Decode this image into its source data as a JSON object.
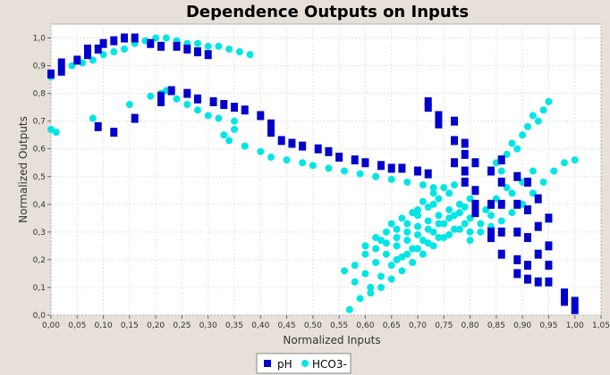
{
  "chart_data": {
    "type": "scatter",
    "title": "Dependence Outputs on Inputs",
    "xlabel": "Normalized Inputs",
    "ylabel": "Normalized Outputs",
    "xlim": [
      0.0,
      1.05
    ],
    "ylim": [
      0.0,
      1.05
    ],
    "x_ticks": [
      "0,00",
      "0,05",
      "0,10",
      "0,15",
      "0,20",
      "0,25",
      "0,30",
      "0,35",
      "0,40",
      "0,45",
      "0,50",
      "0,55",
      "0,60",
      "0,65",
      "0,70",
      "0,75",
      "0,80",
      "0,85",
      "0,90",
      "0,95",
      "1,00",
      "1,05"
    ],
    "y_ticks": [
      "0,0",
      "0,1",
      "0,2",
      "0,3",
      "0,4",
      "0,5",
      "0,6",
      "0,7",
      "0,8",
      "0,9",
      "1,0"
    ],
    "grid": true,
    "legend_position": "bottom",
    "colors": {
      "pH": "#0000cc",
      "HCO3-": "#00e5e5"
    },
    "series": [
      {
        "name": "pH",
        "marker": "square",
        "points": [
          [
            0.0,
            0.87
          ],
          [
            0.02,
            0.88
          ],
          [
            0.02,
            0.91
          ],
          [
            0.05,
            0.92
          ],
          [
            0.07,
            0.94
          ],
          [
            0.07,
            0.96
          ],
          [
            0.09,
            0.96
          ],
          [
            0.1,
            0.98
          ],
          [
            0.12,
            0.99
          ],
          [
            0.14,
            1.0
          ],
          [
            0.16,
            1.0
          ],
          [
            0.19,
            0.98
          ],
          [
            0.21,
            0.97
          ],
          [
            0.24,
            0.97
          ],
          [
            0.26,
            0.96
          ],
          [
            0.28,
            0.95
          ],
          [
            0.3,
            0.94
          ],
          [
            0.09,
            0.68
          ],
          [
            0.12,
            0.66
          ],
          [
            0.16,
            0.71
          ],
          [
            0.21,
            0.79
          ],
          [
            0.21,
            0.77
          ],
          [
            0.23,
            0.81
          ],
          [
            0.26,
            0.8
          ],
          [
            0.28,
            0.78
          ],
          [
            0.31,
            0.77
          ],
          [
            0.33,
            0.76
          ],
          [
            0.35,
            0.75
          ],
          [
            0.37,
            0.74
          ],
          [
            0.4,
            0.72
          ],
          [
            0.42,
            0.69
          ],
          [
            0.42,
            0.66
          ],
          [
            0.44,
            0.63
          ],
          [
            0.46,
            0.62
          ],
          [
            0.48,
            0.61
          ],
          [
            0.51,
            0.6
          ],
          [
            0.53,
            0.59
          ],
          [
            0.55,
            0.57
          ],
          [
            0.58,
            0.56
          ],
          [
            0.6,
            0.55
          ],
          [
            0.63,
            0.54
          ],
          [
            0.65,
            0.53
          ],
          [
            0.67,
            0.53
          ],
          [
            0.7,
            0.52
          ],
          [
            0.72,
            0.51
          ],
          [
            0.72,
            0.77
          ],
          [
            0.72,
            0.75
          ],
          [
            0.74,
            0.72
          ],
          [
            0.74,
            0.69
          ],
          [
            0.77,
            0.7
          ],
          [
            0.77,
            0.63
          ],
          [
            0.79,
            0.62
          ],
          [
            0.79,
            0.58
          ],
          [
            0.77,
            0.55
          ],
          [
            0.79,
            0.52
          ],
          [
            0.79,
            0.48
          ],
          [
            0.81,
            0.55
          ],
          [
            0.81,
            0.45
          ],
          [
            0.81,
            0.4
          ],
          [
            0.81,
            0.37
          ],
          [
            0.84,
            0.52
          ],
          [
            0.84,
            0.4
          ],
          [
            0.84,
            0.3
          ],
          [
            0.84,
            0.28
          ],
          [
            0.86,
            0.56
          ],
          [
            0.86,
            0.48
          ],
          [
            0.86,
            0.4
          ],
          [
            0.86,
            0.3
          ],
          [
            0.86,
            0.22
          ],
          [
            0.89,
            0.5
          ],
          [
            0.89,
            0.4
          ],
          [
            0.89,
            0.3
          ],
          [
            0.89,
            0.2
          ],
          [
            0.89,
            0.15
          ],
          [
            0.91,
            0.48
          ],
          [
            0.91,
            0.38
          ],
          [
            0.91,
            0.28
          ],
          [
            0.91,
            0.18
          ],
          [
            0.91,
            0.13
          ],
          [
            0.93,
            0.42
          ],
          [
            0.93,
            0.32
          ],
          [
            0.93,
            0.22
          ],
          [
            0.93,
            0.12
          ],
          [
            0.95,
            0.35
          ],
          [
            0.95,
            0.25
          ],
          [
            0.95,
            0.18
          ],
          [
            0.95,
            0.12
          ],
          [
            0.98,
            0.08
          ],
          [
            0.98,
            0.05
          ],
          [
            1.0,
            0.05
          ],
          [
            1.0,
            0.02
          ]
        ]
      },
      {
        "name": "HCO3-",
        "marker": "circle",
        "points": [
          [
            0.0,
            0.86
          ],
          [
            0.02,
            0.88
          ],
          [
            0.04,
            0.9
          ],
          [
            0.06,
            0.91
          ],
          [
            0.08,
            0.92
          ],
          [
            0.1,
            0.94
          ],
          [
            0.12,
            0.95
          ],
          [
            0.14,
            0.96
          ],
          [
            0.16,
            0.98
          ],
          [
            0.18,
            0.99
          ],
          [
            0.2,
            1.0
          ],
          [
            0.22,
            1.0
          ],
          [
            0.24,
            0.99
          ],
          [
            0.26,
            0.98
          ],
          [
            0.28,
            0.98
          ],
          [
            0.3,
            0.97
          ],
          [
            0.32,
            0.97
          ],
          [
            0.34,
            0.96
          ],
          [
            0.36,
            0.95
          ],
          [
            0.38,
            0.94
          ],
          [
            0.0,
            0.67
          ],
          [
            0.01,
            0.66
          ],
          [
            0.08,
            0.71
          ],
          [
            0.15,
            0.76
          ],
          [
            0.19,
            0.79
          ],
          [
            0.21,
            0.8
          ],
          [
            0.22,
            0.81
          ],
          [
            0.24,
            0.78
          ],
          [
            0.26,
            0.76
          ],
          [
            0.28,
            0.74
          ],
          [
            0.3,
            0.72
          ],
          [
            0.32,
            0.71
          ],
          [
            0.35,
            0.7
          ],
          [
            0.35,
            0.67
          ],
          [
            0.33,
            0.65
          ],
          [
            0.34,
            0.63
          ],
          [
            0.37,
            0.61
          ],
          [
            0.4,
            0.59
          ],
          [
            0.42,
            0.57
          ],
          [
            0.45,
            0.56
          ],
          [
            0.48,
            0.55
          ],
          [
            0.5,
            0.54
          ],
          [
            0.53,
            0.53
          ],
          [
            0.56,
            0.52
          ],
          [
            0.59,
            0.51
          ],
          [
            0.62,
            0.5
          ],
          [
            0.65,
            0.49
          ],
          [
            0.68,
            0.48
          ],
          [
            0.71,
            0.47
          ],
          [
            0.73,
            0.46
          ],
          [
            0.57,
            0.02
          ],
          [
            0.59,
            0.06
          ],
          [
            0.61,
            0.1
          ],
          [
            0.63,
            0.14
          ],
          [
            0.65,
            0.18
          ],
          [
            0.67,
            0.21
          ],
          [
            0.69,
            0.24
          ],
          [
            0.71,
            0.27
          ],
          [
            0.73,
            0.3
          ],
          [
            0.75,
            0.33
          ],
          [
            0.77,
            0.36
          ],
          [
            0.79,
            0.39
          ],
          [
            0.56,
            0.16
          ],
          [
            0.58,
            0.18
          ],
          [
            0.6,
            0.22
          ],
          [
            0.62,
            0.24
          ],
          [
            0.64,
            0.26
          ],
          [
            0.66,
            0.28
          ],
          [
            0.68,
            0.3
          ],
          [
            0.7,
            0.32
          ],
          [
            0.72,
            0.34
          ],
          [
            0.74,
            0.36
          ],
          [
            0.76,
            0.38
          ],
          [
            0.78,
            0.4
          ],
          [
            0.8,
            0.42
          ],
          [
            0.58,
            0.12
          ],
          [
            0.6,
            0.15
          ],
          [
            0.62,
            0.19
          ],
          [
            0.64,
            0.22
          ],
          [
            0.66,
            0.25
          ],
          [
            0.68,
            0.27
          ],
          [
            0.7,
            0.29
          ],
          [
            0.72,
            0.31
          ],
          [
            0.74,
            0.33
          ],
          [
            0.76,
            0.35
          ],
          [
            0.78,
            0.37
          ],
          [
            0.62,
            0.28
          ],
          [
            0.64,
            0.3
          ],
          [
            0.66,
            0.31
          ],
          [
            0.68,
            0.33
          ],
          [
            0.7,
            0.36
          ],
          [
            0.72,
            0.39
          ],
          [
            0.74,
            0.42
          ],
          [
            0.76,
            0.44
          ],
          [
            0.7,
            0.38
          ],
          [
            0.73,
            0.4
          ],
          [
            0.61,
            0.08
          ],
          [
            0.63,
            0.1
          ],
          [
            0.65,
            0.13
          ],
          [
            0.67,
            0.16
          ],
          [
            0.69,
            0.19
          ],
          [
            0.71,
            0.22
          ],
          [
            0.73,
            0.25
          ],
          [
            0.75,
            0.28
          ],
          [
            0.77,
            0.31
          ],
          [
            0.79,
            0.33
          ],
          [
            0.8,
            0.3
          ],
          [
            0.82,
            0.33
          ],
          [
            0.84,
            0.36
          ],
          [
            0.86,
            0.4
          ],
          [
            0.88,
            0.44
          ],
          [
            0.9,
            0.48
          ],
          [
            0.92,
            0.52
          ],
          [
            0.8,
            0.35
          ],
          [
            0.83,
            0.38
          ],
          [
            0.85,
            0.42
          ],
          [
            0.87,
            0.46
          ],
          [
            0.89,
            0.5
          ],
          [
            0.82,
            0.3
          ],
          [
            0.84,
            0.32
          ],
          [
            0.86,
            0.34
          ],
          [
            0.88,
            0.37
          ],
          [
            0.9,
            0.4
          ],
          [
            0.92,
            0.44
          ],
          [
            0.94,
            0.48
          ],
          [
            0.96,
            0.52
          ],
          [
            0.98,
            0.55
          ],
          [
            1.0,
            0.56
          ],
          [
            0.85,
            0.55
          ],
          [
            0.87,
            0.58
          ],
          [
            0.88,
            0.62
          ],
          [
            0.9,
            0.65
          ],
          [
            0.91,
            0.68
          ],
          [
            0.92,
            0.72
          ],
          [
            0.94,
            0.74
          ],
          [
            0.95,
            0.77
          ],
          [
            0.93,
            0.7
          ],
          [
            0.89,
            0.6
          ],
          [
            0.86,
            0.52
          ],
          [
            0.66,
            0.2
          ],
          [
            0.68,
            0.22
          ],
          [
            0.7,
            0.24
          ],
          [
            0.72,
            0.26
          ],
          [
            0.74,
            0.28
          ],
          [
            0.76,
            0.29
          ],
          [
            0.78,
            0.31
          ],
          [
            0.8,
            0.27
          ],
          [
            0.6,
            0.25
          ],
          [
            0.63,
            0.27
          ],
          [
            0.67,
            0.35
          ],
          [
            0.69,
            0.37
          ],
          [
            0.71,
            0.41
          ],
          [
            0.73,
            0.44
          ],
          [
            0.75,
            0.46
          ],
          [
            0.77,
            0.47
          ],
          [
            0.65,
            0.33
          ]
        ]
      }
    ]
  }
}
